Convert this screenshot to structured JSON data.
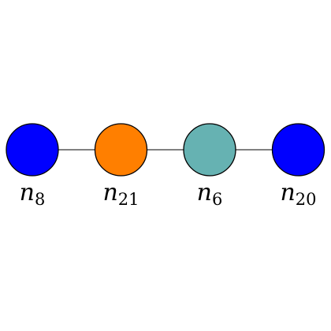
{
  "graph": {
    "nodes": [
      {
        "id": "n8",
        "label": "n",
        "subscript": "8",
        "color": "#0000ff"
      },
      {
        "id": "n21",
        "label": "n",
        "subscript": "21",
        "color": "#ff7f00"
      },
      {
        "id": "n6",
        "label": "n",
        "subscript": "6",
        "color": "#66b2b2"
      },
      {
        "id": "n20",
        "label": "n",
        "subscript": "20",
        "color": "#0000ff"
      }
    ],
    "edges": [
      {
        "from": "n8",
        "to": "n21"
      },
      {
        "from": "n21",
        "to": "n6"
      },
      {
        "from": "n6",
        "to": "n20"
      }
    ]
  }
}
